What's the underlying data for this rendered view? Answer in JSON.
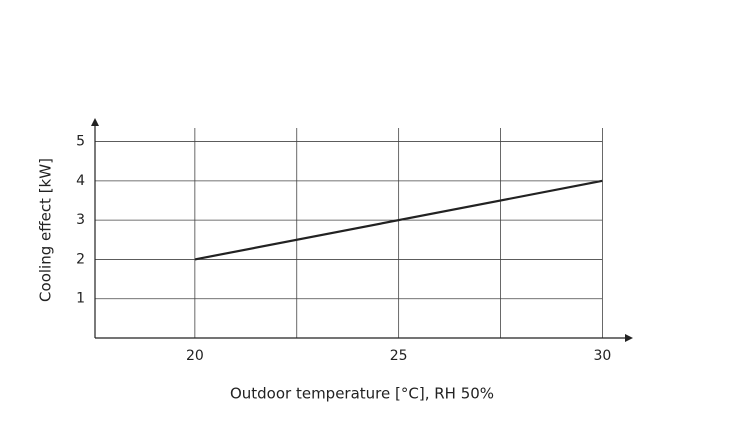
{
  "chart_data": {
    "type": "line",
    "x_label": "Outdoor temperature [°C], RH 50%",
    "y_label": "Cooling effect [kW]",
    "x": [
      20,
      30
    ],
    "series": [
      {
        "color": "#222222",
        "values": [
          2,
          4
        ]
      }
    ],
    "xlim": [
      17.55,
      30.75
    ],
    "ylim": [
      0,
      5.6
    ],
    "xticks": [
      20,
      25,
      30
    ],
    "x_minor_grid": [
      22.5,
      27.5
    ],
    "yticks": [
      1,
      2,
      3,
      4,
      5
    ],
    "grid": true
  }
}
